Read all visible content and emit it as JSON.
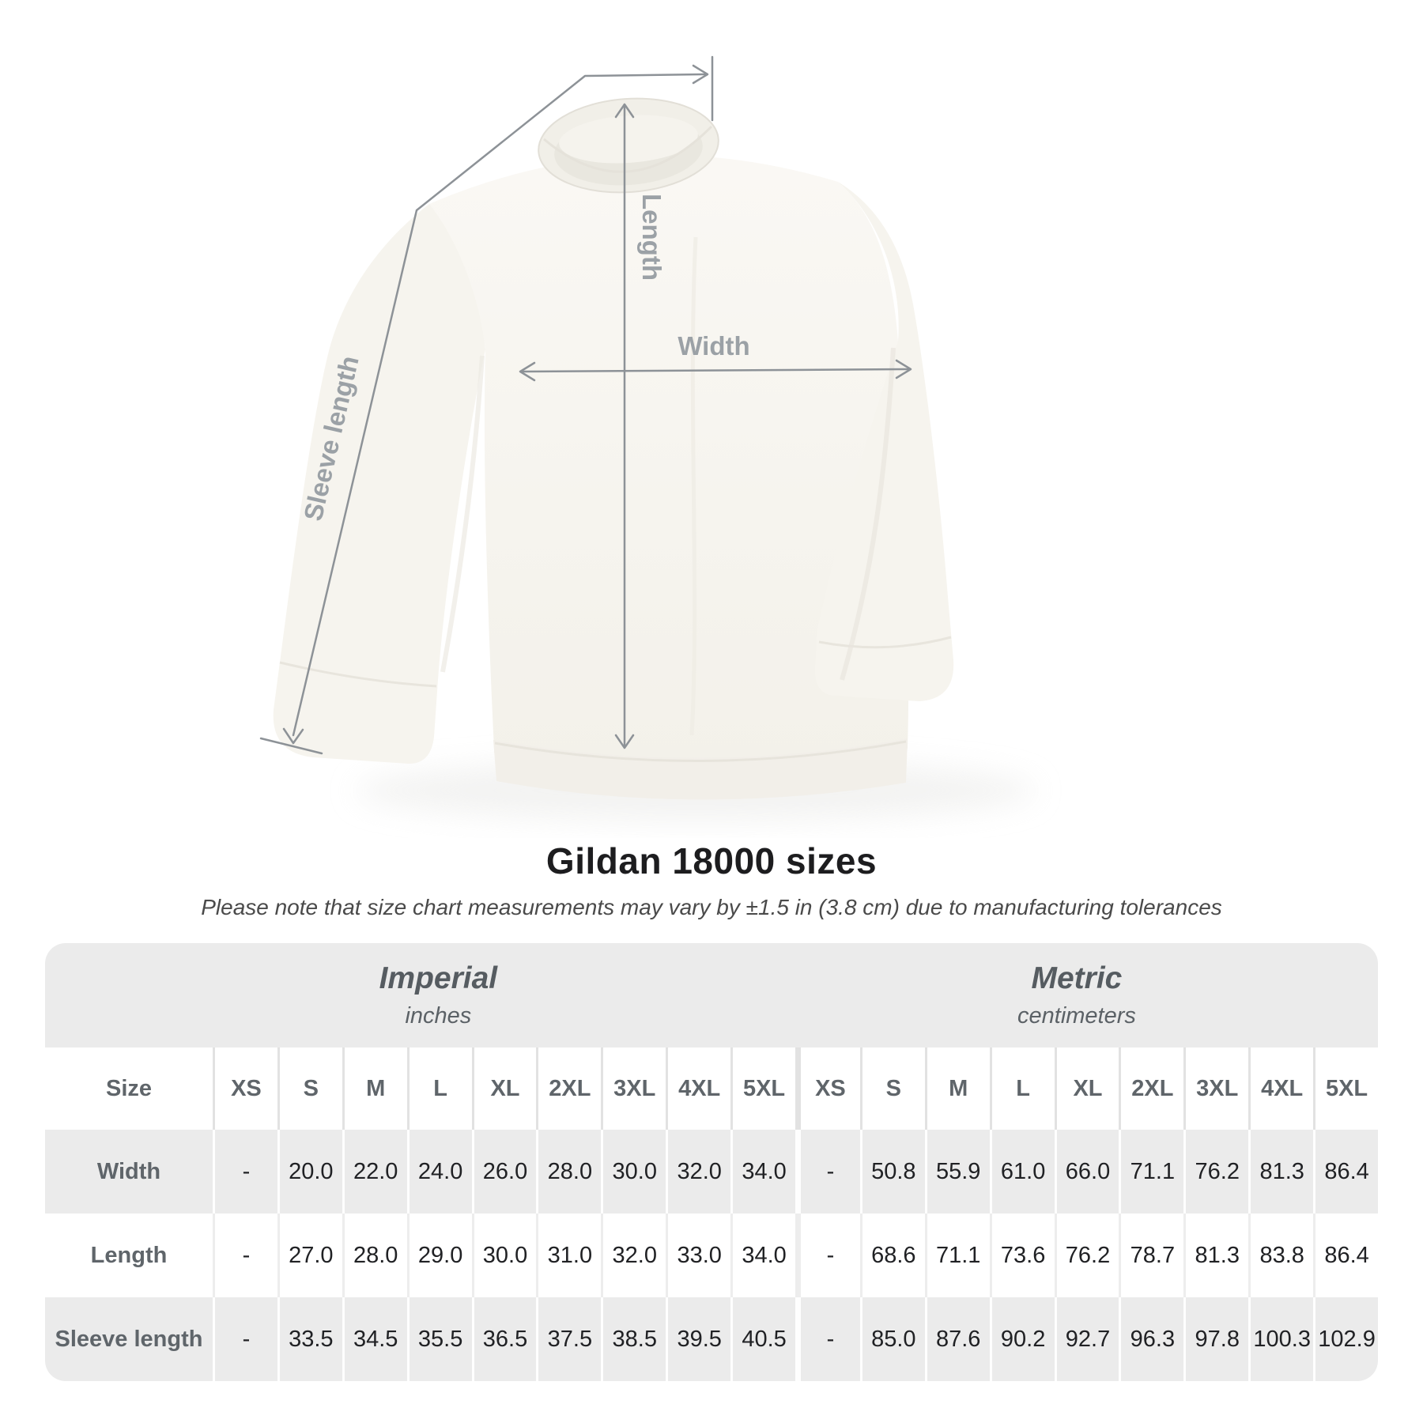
{
  "diagram": {
    "length_label": "Length",
    "width_label": "Width",
    "sleeve_length_label": "Sleeve length"
  },
  "chart_data": {
    "type": "table",
    "title": "Gildan 18000 sizes",
    "note": "Please note that size chart measurements may vary by ±1.5 in (3.8 cm) due to manufacturing tolerances",
    "unit_groups": [
      {
        "label": "Imperial",
        "sublabel": "inches"
      },
      {
        "label": "Metric",
        "sublabel": "centimeters"
      }
    ],
    "header": {
      "size_label": "Size",
      "imperial_sizes": [
        "XS",
        "S",
        "M",
        "L",
        "XL",
        "2XL",
        "3XL",
        "4XL",
        "5XL"
      ],
      "metric_sizes": [
        "XS",
        "S",
        "M",
        "L",
        "XL",
        "2XL",
        "3XL",
        "4XL",
        "5XL"
      ]
    },
    "rows": [
      {
        "label": "Width",
        "imperial": [
          "-",
          "20.0",
          "22.0",
          "24.0",
          "26.0",
          "28.0",
          "30.0",
          "32.0",
          "34.0"
        ],
        "metric": [
          "-",
          "50.8",
          "55.9",
          "61.0",
          "66.0",
          "71.1",
          "76.2",
          "81.3",
          "86.4"
        ]
      },
      {
        "label": "Length",
        "imperial": [
          "-",
          "27.0",
          "28.0",
          "29.0",
          "30.0",
          "31.0",
          "32.0",
          "33.0",
          "34.0"
        ],
        "metric": [
          "-",
          "68.6",
          "71.1",
          "73.6",
          "76.2",
          "78.7",
          "81.3",
          "83.8",
          "86.4"
        ]
      },
      {
        "label": "Sleeve length",
        "imperial": [
          "-",
          "33.5",
          "34.5",
          "35.5",
          "36.5",
          "37.5",
          "38.5",
          "39.5",
          "40.5"
        ],
        "metric": [
          "-",
          "85.0",
          "87.6",
          "90.2",
          "92.7",
          "96.3",
          "97.8",
          "100.3",
          "102.9"
        ]
      }
    ]
  },
  "colors": {
    "background": "#ffffff",
    "garment": "#f7f5f0",
    "garment_shadow": "#e9e6df",
    "table_band": "#ebebeb",
    "row_shade": "#ebebeb",
    "divider": "#e2e2e2",
    "title_text": "#1d1d1f",
    "subtitle_text": "#4a4a4a",
    "header_text": "#5f656a",
    "value_text": "#202124",
    "measure_line": "#8d9297",
    "measure_label": "#9ba1a6"
  }
}
